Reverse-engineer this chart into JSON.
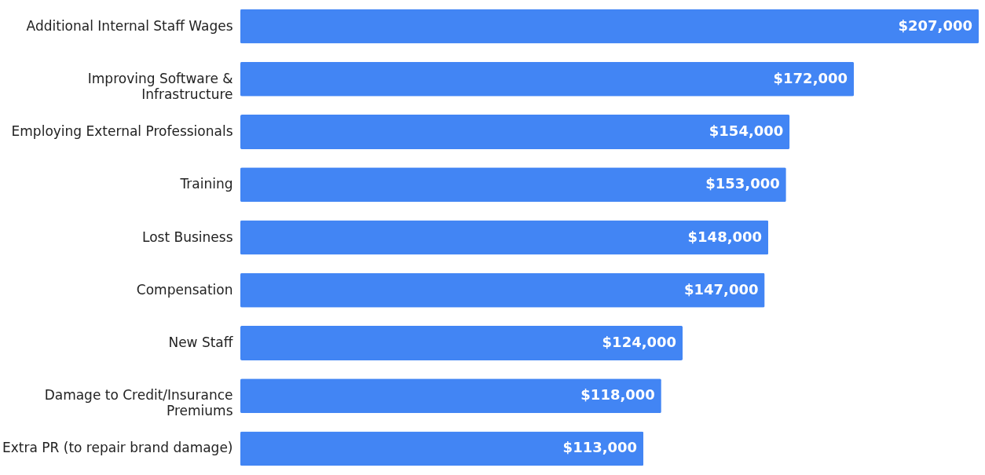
{
  "chart_data": {
    "type": "bar",
    "orientation": "horizontal",
    "categories": [
      "Additional Internal Staff Wages",
      "Improving Software & Infrastructure",
      "Employing External Professionals",
      "Training",
      "Lost Business",
      "Compensation",
      "New Staff",
      "Damage to Credit/Insurance Premiums",
      "Extra PR (to repair brand damage)"
    ],
    "values": [
      207000,
      172000,
      154000,
      153000,
      148000,
      147000,
      124000,
      118000,
      113000
    ],
    "value_labels": [
      "$207,000",
      "$172,000",
      "$154,000",
      "$153,000",
      "$148,000",
      "$147,000",
      "$124,000",
      "$118,000",
      "$113,000"
    ],
    "color": "#4285f4"
  }
}
